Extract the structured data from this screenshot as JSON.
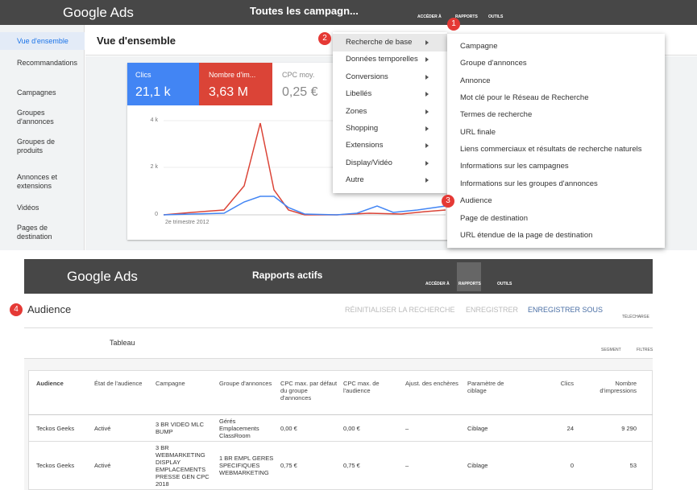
{
  "top": {
    "brand": "Google Ads",
    "campaign": "Toutes les campagn...",
    "nav": [
      "ACCÉDER À",
      "RAPPORTS",
      "OUTILS"
    ],
    "sidebar": [
      "Vue d'ensemble",
      "Recommandations",
      "Campagnes",
      "Groupes d'annonces",
      "Groupes de produits",
      "Annonces et extensions",
      "Vidéos",
      "Pages de destination"
    ],
    "page_title": "Vue d'ensemble",
    "metrics": [
      {
        "label": "Clics",
        "value": "21,1 k"
      },
      {
        "label": "Nombre d'im...",
        "value": "3,63 M"
      },
      {
        "label": "CPC moy.",
        "value": "0,25 €"
      }
    ],
    "chart_axis": [
      "4 k",
      "2 k",
      "0"
    ],
    "chart_period": "2e trimestre 2012",
    "menu": [
      "Recherche de base",
      "Données temporelles",
      "Conversions",
      "Libellés",
      "Zones",
      "Shopping",
      "Extensions",
      "Display/Vidéo",
      "Autre"
    ],
    "submenu": [
      "Campagne",
      "Groupe d'annonces",
      "Annonce",
      "Mot clé pour le Réseau de Recherche",
      "Termes de recherche",
      "URL finale",
      "Liens commerciaux et résultats de recherche naturels",
      "Informations sur les campagnes",
      "Informations sur les groupes d'annonces",
      "Audience",
      "Page de destination",
      "URL étendue de la page de destination"
    ],
    "badges": [
      "1",
      "2",
      "3"
    ]
  },
  "bottom": {
    "brand": "Google Ads",
    "title": "Rapports actifs",
    "nav": [
      "ACCÉDER À",
      "RAPPORTS",
      "OUTILS"
    ],
    "badge": "4",
    "report_title": "Audience",
    "actions": [
      "RÉINITIALISER LA RECHERCHE",
      "ENREGISTRER",
      "ENREGISTRER SOUS"
    ],
    "download": "TÉLÉCHARGE",
    "view": "Tableau",
    "tools": [
      "SEGMENT",
      "FILTRES"
    ],
    "table": {
      "headers": [
        "Audience",
        "État de l'audience",
        "Campagne",
        "Groupe d'annonces",
        "CPC max. par défaut du groupe d'annonces",
        "CPC max. de l'audience",
        "Ajust. des enchères",
        "Paramètre de ciblage",
        "Clics",
        "Nombre d'impressions"
      ],
      "rows": [
        [
          "Teckos Geeks",
          "Activé",
          "3 BR VIDEO MLC BUMP",
          "Gérés Emplacements ClassRoom",
          "0,00 €",
          "0,00 €",
          "–",
          "Ciblage",
          "24",
          "9 290"
        ],
        [
          "Teckos Geeks",
          "Activé",
          "3 BR WEBMARKETING DISPLAY EMPLACEMENTS PRESSE GEN CPC 2018",
          "1 BR EMPL GERES SPECIFIQUES WEBMARKETING",
          "0,75 €",
          "0,75 €",
          "–",
          "Ciblage",
          "0",
          "53"
        ]
      ]
    }
  }
}
